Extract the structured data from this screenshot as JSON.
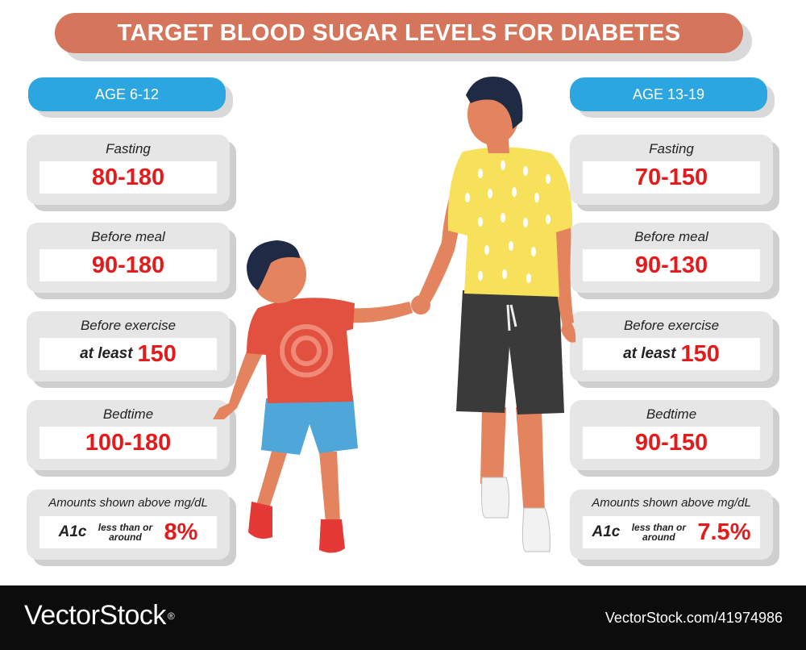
{
  "title": "TARGET BLOOD SUGAR LEVELS FOR DIABETES",
  "left": {
    "age": "AGE 6-12",
    "cards": [
      {
        "label": "Fasting",
        "value": "80-180"
      },
      {
        "label": "Before meal",
        "value": "90-180"
      },
      {
        "label": "Before exercise",
        "prefix": "at least",
        "value": "150"
      },
      {
        "label": "Bedtime",
        "value": "100-180"
      }
    ],
    "a1c": {
      "note": "Amounts shown above mg/dL",
      "label": "A1c",
      "qualifier": "less than or around",
      "value": "8%"
    }
  },
  "right": {
    "age": "AGE 13-19",
    "cards": [
      {
        "label": "Fasting",
        "value": "70-150"
      },
      {
        "label": "Before meal",
        "value": "90-130"
      },
      {
        "label": "Before exercise",
        "prefix": "at least",
        "value": "150"
      },
      {
        "label": "Bedtime",
        "value": "90-150"
      }
    ],
    "a1c": {
      "note": "Amounts shown above mg/dL",
      "label": "A1c",
      "qualifier": "less than or around",
      "value": "7.5%"
    }
  },
  "footer": {
    "brand": "VectorStock",
    "url": "VectorStock.com/41974986"
  },
  "colors": {
    "title_bg": "#d5755b",
    "age_bg": "#2ca6e0",
    "value_red": "#e51a1a",
    "card_bg": "#e6e6e6"
  }
}
